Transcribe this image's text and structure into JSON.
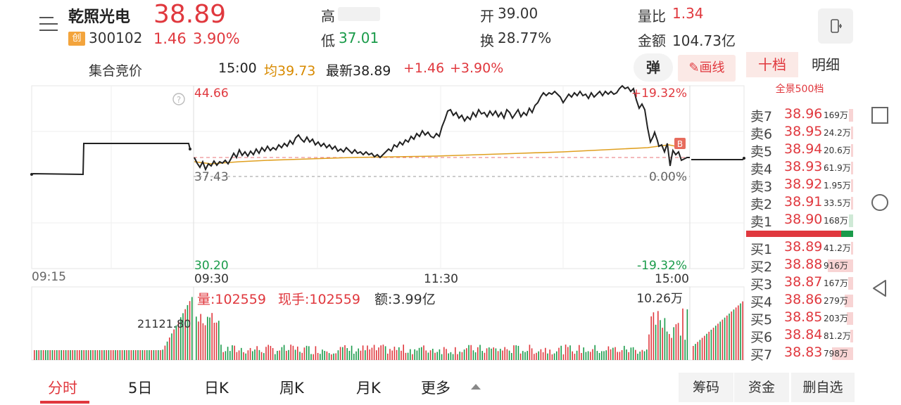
{
  "stock": {
    "name": "乾照光电",
    "board_badge": "创",
    "code": "300102",
    "price": "38.89",
    "change": "1.46",
    "change_pct": "3.90%"
  },
  "quote": {
    "high_label": "高",
    "open_label": "开",
    "open": "39.00",
    "volume_ratio_label": "量比",
    "volume_ratio": "1.34",
    "low_label": "低",
    "low": "37.01",
    "turnover_label": "换",
    "turnover": "28.77%",
    "amount_label": "金额",
    "amount": "104.73亿"
  },
  "subbar": {
    "auction_label": "集合竞价",
    "time": "15:00",
    "avg": "均39.73",
    "latest": "最新38.89",
    "chg": "+1.46",
    "chgp": "+3.90%",
    "dan_label": "弹",
    "draw_label": "画线"
  },
  "chart_data": {
    "type": "line",
    "price_axis": {
      "max": "44.66",
      "min": "30.20",
      "prev_close": "37.43",
      "max_pct": "+19.32%",
      "min_pct": "-19.32%",
      "zero_pct": "0.00%"
    },
    "time_ticks": [
      "09:15",
      "09:30",
      "11:30",
      "15:00"
    ],
    "volume_label": "量:102559",
    "hand_label": "现手:102559",
    "amount_label": "额:3.99亿",
    "vol_max_label": "10.26万",
    "auction_vol_label": "21121.80",
    "b_marker": "B"
  },
  "tabs": {
    "ten": "十档",
    "detail": "明细",
    "full_depth": "全景500档"
  },
  "depth": {
    "sell": [
      {
        "label": "卖7",
        "price": "38.96",
        "vol": "169万",
        "bar": 0.1
      },
      {
        "label": "卖6",
        "price": "38.95",
        "vol": "24.2万",
        "bar": 0.02
      },
      {
        "label": "卖5",
        "price": "38.94",
        "vol": "20.6万",
        "bar": 0.02
      },
      {
        "label": "卖4",
        "price": "38.93",
        "vol": "61.9万",
        "bar": 0.04
      },
      {
        "label": "卖3",
        "price": "38.92",
        "vol": "1.95万",
        "bar": 0.01
      },
      {
        "label": "卖2",
        "price": "38.91",
        "vol": "33.5万",
        "bar": 0.03
      },
      {
        "label": "卖1",
        "price": "38.90",
        "vol": "168万",
        "bar": 0.1
      }
    ],
    "buy": [
      {
        "label": "买1",
        "price": "38.89",
        "vol": "41.2万",
        "bar": 0.04
      },
      {
        "label": "买2",
        "price": "38.88",
        "vol": "916万",
        "bar": 0.6
      },
      {
        "label": "买3",
        "price": "38.87",
        "vol": "167万",
        "bar": 0.12
      },
      {
        "label": "买4",
        "price": "38.86",
        "vol": "279万",
        "bar": 0.2
      },
      {
        "label": "买5",
        "price": "38.85",
        "vol": "203万",
        "bar": 0.15
      },
      {
        "label": "买6",
        "price": "38.84",
        "vol": "81.2万",
        "bar": 0.06
      },
      {
        "label": "买7",
        "price": "38.83",
        "vol": "798万",
        "bar": 0.5
      }
    ]
  },
  "bottom_tabs": [
    "分时",
    "5日",
    "日K",
    "周K",
    "月K",
    "更多"
  ],
  "bottom_buttons": [
    "筹码",
    "资金",
    "删自选"
  ],
  "colors": {
    "up": "#e0383e",
    "down": "#1a9b4a",
    "avg": "#e0a020"
  }
}
